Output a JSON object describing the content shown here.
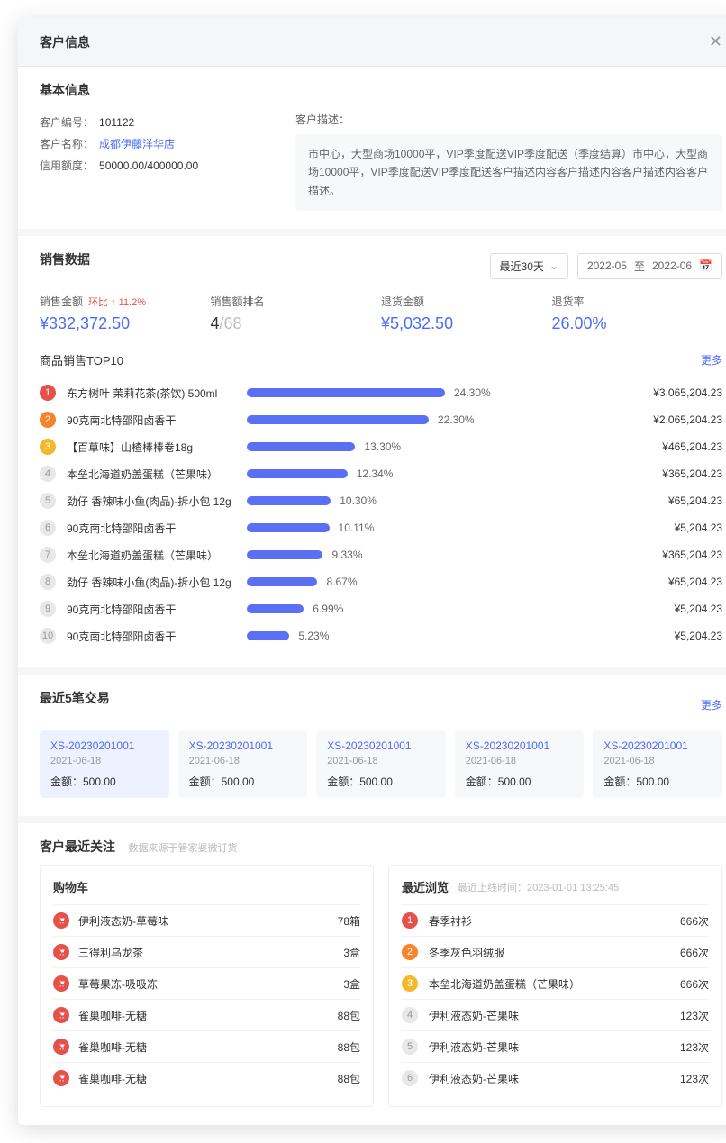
{
  "modal": {
    "title": "客户信息"
  },
  "basic": {
    "title": "基本信息",
    "id_label": "客户编号：",
    "id": "101122",
    "name_label": "客户名称：",
    "name": "成都伊藤洋华店",
    "credit_label": "信用额度：",
    "credit": "50000.00/400000.00",
    "desc_label": "客户描述：",
    "desc": "市中心，大型商场10000平，VIP季度配送VIP季度配送（季度结算）市中心，大型商场10000平，VIP季度配送VIP季度配送客户描述内容客户描述内容客户描述内容客户描述。"
  },
  "sales": {
    "title": "销售数据",
    "period": "最近30天",
    "date_from": "2022-05",
    "date_to": "2022-06",
    "date_sep": "至",
    "metrics": [
      {
        "label": "销售金额",
        "value": "¥332,372.50",
        "change_label": "环比",
        "change": "11.2%",
        "arrow": "↑"
      },
      {
        "label": "销售额排名",
        "rank": "4",
        "total": "/68"
      },
      {
        "label": "退货金额",
        "value": "¥5,032.50"
      },
      {
        "label": "退货率",
        "value": "26.00%"
      }
    ],
    "top_title": "商品销售TOP10",
    "more": "更多",
    "bar_color": "#5b6ff5",
    "bar_max": 24.3,
    "top": [
      {
        "name": "东方树叶 茉莉花茶(茶饮) 500ml",
        "pct": 24.3,
        "amt": "¥3,065,204.23"
      },
      {
        "name": "90克南北特邵阳卤香干",
        "pct": 22.3,
        "amt": "¥2,065,204.23"
      },
      {
        "name": "【百草味】山楂棒棒卷18g",
        "pct": 13.3,
        "amt": "¥465,204.23"
      },
      {
        "name": "本垒北海道奶盖蛋糕（芒果味）",
        "pct": 12.34,
        "amt": "¥365,204.23"
      },
      {
        "name": "劲仔 香辣味小鱼(肉品)-拆小包 12g",
        "pct": 10.3,
        "amt": "¥65,204.23"
      },
      {
        "name": "90克南北特邵阳卤香干",
        "pct": 10.11,
        "amt": "¥5,204.23"
      },
      {
        "name": "本垒北海道奶盖蛋糕（芒果味）",
        "pct": 9.33,
        "amt": "¥365,204.23"
      },
      {
        "name": "劲仔 香辣味小鱼(肉品)-拆小包 12g",
        "pct": 8.67,
        "amt": "¥65,204.23"
      },
      {
        "name": "90克南北特邵阳卤香干",
        "pct": 6.99,
        "amt": "¥5,204.23"
      },
      {
        "name": "90克南北特邵阳卤香干",
        "pct": 5.23,
        "amt": "¥5,204.23"
      }
    ]
  },
  "trans": {
    "title": "最近5笔交易",
    "more": "更多",
    "amt_label": "金额：",
    "items": [
      {
        "id": "XS-20230201001",
        "date": "2021-06-18",
        "amt": "500.00"
      },
      {
        "id": "XS-20230201001",
        "date": "2021-06-18",
        "amt": "500.00"
      },
      {
        "id": "XS-20230201001",
        "date": "2021-06-18",
        "amt": "500.00"
      },
      {
        "id": "XS-20230201001",
        "date": "2021-06-18",
        "amt": "500.00"
      },
      {
        "id": "XS-20230201001",
        "date": "2021-06-18",
        "amt": "500.00"
      }
    ]
  },
  "attention": {
    "title": "客户最近关注",
    "hint": "数据来源于管家婆微订货",
    "cart": {
      "title": "购物车",
      "icon_color": "#e6514a",
      "items": [
        {
          "name": "伊利液态奶-草莓味",
          "qty": "78箱"
        },
        {
          "name": "三得利乌龙茶",
          "qty": "3盒"
        },
        {
          "name": "草莓果冻-吸吸冻",
          "qty": "3盒"
        },
        {
          "name": "雀巢咖啡-无糖",
          "qty": "88包"
        },
        {
          "name": "雀巢咖啡-无糖",
          "qty": "88包"
        },
        {
          "name": "雀巢咖啡-无糖",
          "qty": "88包"
        }
      ]
    },
    "browse": {
      "title": "最近浏览",
      "sub_label": "最近上线时间：",
      "sub_time": "2023-01-01 13:25:45",
      "items": [
        {
          "name": "春季衬衫",
          "qty": "666次"
        },
        {
          "name": "冬季灰色羽绒服",
          "qty": "666次"
        },
        {
          "name": "本垒北海道奶盖蛋糕（芒果味）",
          "qty": "666次"
        },
        {
          "name": "伊利液态奶-芒果味",
          "qty": "123次"
        },
        {
          "name": "伊利液态奶-芒果味",
          "qty": "123次"
        },
        {
          "name": "伊利液态奶-芒果味",
          "qty": "123次"
        }
      ]
    }
  }
}
